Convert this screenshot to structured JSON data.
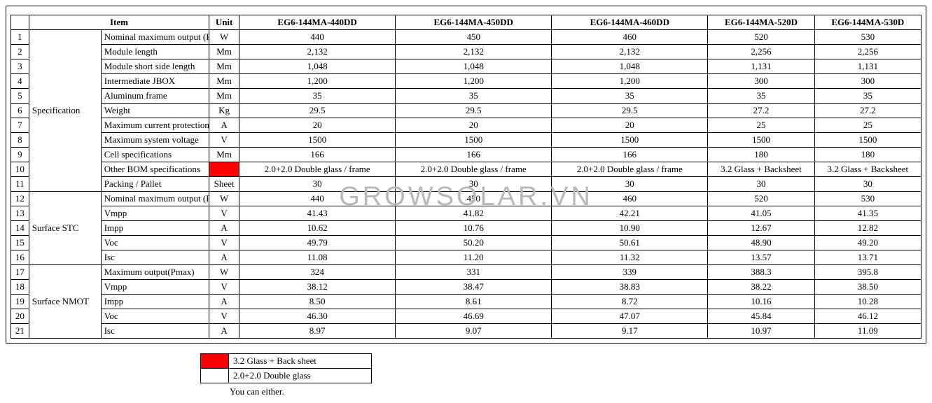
{
  "watermark": "GROWSOLAR.VN",
  "headers": {
    "item": "Item",
    "unit": "Unit",
    "models": [
      "EG6-144MA-440DD",
      "EG6-144MA-450DD",
      "EG6-144MA-460DD",
      "EG6-144MA-520D",
      "EG6-144MA-530D"
    ]
  },
  "groups": [
    {
      "name": "Specification",
      "start": 1,
      "span": 11
    },
    {
      "name": "Surface STC",
      "start": 12,
      "span": 5
    },
    {
      "name": "Surface NMOT",
      "start": 17,
      "span": 5
    }
  ],
  "rows": [
    {
      "n": 1,
      "item": "Nominal maximum output (Pmax",
      "unit": "W",
      "wrap": true,
      "v": [
        "440",
        "450",
        "460",
        "520",
        "530"
      ]
    },
    {
      "n": 2,
      "item": "Module length",
      "unit": "Mm",
      "v": [
        "2,132",
        "2,132",
        "2,132",
        "2,256",
        "2,256"
      ]
    },
    {
      "n": 3,
      "item": "Module short side length",
      "unit": "Mm",
      "v": [
        "1,048",
        "1,048",
        "1,048",
        "1,131",
        "1,131"
      ]
    },
    {
      "n": 4,
      "item": "Intermediate JBOX",
      "unit": "Mm",
      "v": [
        "1,200",
        "1,200",
        "1,200",
        "300",
        "300"
      ]
    },
    {
      "n": 5,
      "item": "Aluminum frame",
      "unit": "Mm",
      "v": [
        "35",
        "35",
        "35",
        "35",
        "35"
      ]
    },
    {
      "n": 6,
      "item": "Weight",
      "unit": "Kg",
      "v": [
        "29.5",
        "29.5",
        "29.5",
        "27.2",
        "27.2"
      ]
    },
    {
      "n": 7,
      "item": "Maximum current protection",
      "unit": "A",
      "wrap": true,
      "v": [
        "20",
        "20",
        "20",
        "25",
        "25"
      ]
    },
    {
      "n": 8,
      "item": "Maximum system voltage",
      "unit": "V",
      "v": [
        "1500",
        "1500",
        "1500",
        "1500",
        "1500"
      ]
    },
    {
      "n": 9,
      "item": "Cell specifications",
      "unit": "Mm",
      "v": [
        "166",
        "166",
        "166",
        "180",
        "180"
      ]
    },
    {
      "n": 10,
      "item": "Other BOM specifications",
      "unit": "",
      "unit_red": true,
      "v": [
        "2.0+2.0 Double glass / frame",
        "2.0+2.0 Double glass / frame",
        "2.0+2.0 Double glass / frame",
        "3.2 Glass + Backsheet",
        "3.2 Glass + Backsheet"
      ]
    },
    {
      "n": 11,
      "item": "Packing / Pallet",
      "unit": "Sheet",
      "v": [
        "30",
        "30",
        "30",
        "30",
        "30"
      ]
    },
    {
      "n": 12,
      "item": "Nominal maximum output (Pmax",
      "unit": "W",
      "wrap": true,
      "v": [
        "440",
        "450",
        "460",
        "520",
        "530"
      ]
    },
    {
      "n": 13,
      "item": "Vmpp",
      "unit": "V",
      "v": [
        "41.43",
        "41.82",
        "42.21",
        "41.05",
        "41.35"
      ]
    },
    {
      "n": 14,
      "item": "Impp",
      "unit": "A",
      "v": [
        "10.62",
        "10.76",
        "10.90",
        "12.67",
        "12.82"
      ]
    },
    {
      "n": 15,
      "item": "Voc",
      "unit": "V",
      "v": [
        "49.79",
        "50.20",
        "50.61",
        "48.90",
        "49.20"
      ]
    },
    {
      "n": 16,
      "item": "Isc",
      "unit": "A",
      "v": [
        "11.08",
        "11.20",
        "11.32",
        "13.57",
        "13.71"
      ]
    },
    {
      "n": 17,
      "item": "Maximum output(Pmax)",
      "unit": "W",
      "v": [
        "324",
        "331",
        "339",
        "388.3",
        "395.8"
      ]
    },
    {
      "n": 18,
      "item": "Vmpp",
      "unit": "V",
      "v": [
        "38.12",
        "38.47",
        "38.83",
        "38.22",
        "38.50"
      ]
    },
    {
      "n": 19,
      "item": "Impp",
      "unit": "A",
      "v": [
        "8.50",
        "8.61",
        "8.72",
        "10.16",
        "10.28"
      ]
    },
    {
      "n": 20,
      "item": "Voc",
      "unit": "V",
      "v": [
        "46.30",
        "46.69",
        "47.07",
        "45.84",
        "46.12"
      ]
    },
    {
      "n": 21,
      "item": "Isc",
      "unit": "A",
      "v": [
        "8.97",
        "9.07",
        "9.17",
        "10.97",
        "11.09"
      ]
    }
  ],
  "legend": {
    "rows": [
      {
        "swatch_red": true,
        "label": "3.2 Glass + Back sheet"
      },
      {
        "swatch_red": false,
        "label": "2.0+2.0 Double glass"
      }
    ],
    "note": "You can either."
  },
  "colors": {
    "red": "#ff0000",
    "watermark": "#b8b8b8",
    "border": "#000000"
  }
}
